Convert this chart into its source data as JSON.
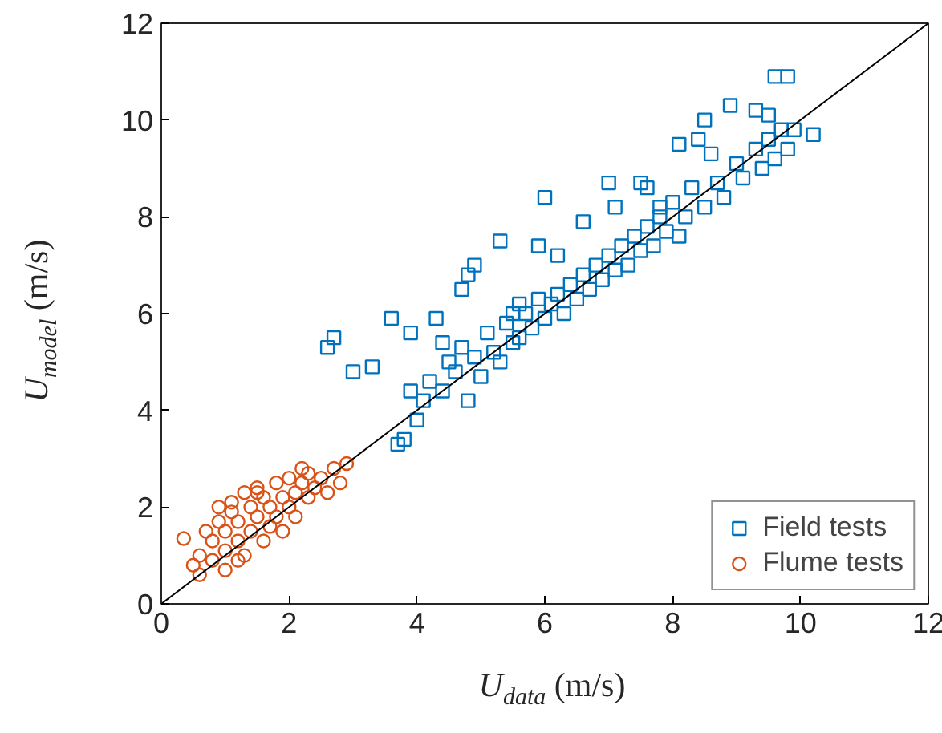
{
  "chart_data": {
    "type": "scatter",
    "xlabel": "U$_{data}$ (m/s)",
    "ylabel": "U$_{model}$ (m/s)",
    "xlim": [
      0,
      12
    ],
    "ylim": [
      0,
      12
    ],
    "xticks": [
      0,
      2,
      4,
      6,
      8,
      10,
      12
    ],
    "yticks": [
      0,
      2,
      4,
      6,
      8,
      10,
      12
    ],
    "grid": false,
    "legend": "bottom right",
    "series": [
      {
        "name": "Field tests",
        "marker": "square",
        "color": "#0072bd",
        "x": [
          2.6,
          2.7,
          3.0,
          3.3,
          3.6,
          3.9,
          4.3,
          4.7,
          4.9,
          5.3,
          4.8,
          5.5,
          6.0,
          5.9,
          6.6,
          7.1,
          7.0,
          7.5,
          7.8,
          8.1,
          8.5,
          8.9,
          9.6,
          9.8,
          9.9,
          10.2,
          3.7,
          3.8,
          4.0,
          4.1,
          4.2,
          4.4,
          4.5,
          4.6,
          4.7,
          4.8,
          4.9,
          5.0,
          5.1,
          5.2,
          5.3,
          5.4,
          5.5,
          5.6,
          5.7,
          5.8,
          5.9,
          6.0,
          6.1,
          6.2,
          6.3,
          6.4,
          6.5,
          6.6,
          6.7,
          6.8,
          6.9,
          7.0,
          7.1,
          7.2,
          7.3,
          7.4,
          7.5,
          7.6,
          7.7,
          7.8,
          7.9,
          8.0,
          8.1,
          8.2,
          8.3,
          8.5,
          8.7,
          8.8,
          9.0,
          9.1,
          9.3,
          9.4,
          9.5,
          9.6,
          9.7,
          9.8,
          9.3,
          9.5,
          8.6,
          8.4,
          7.6,
          6.2,
          5.6,
          4.4,
          3.9
        ],
        "values": [
          5.3,
          5.5,
          4.8,
          4.9,
          5.9,
          5.6,
          5.9,
          6.5,
          7.0,
          7.5,
          6.8,
          6.0,
          8.4,
          7.4,
          7.9,
          8.2,
          8.7,
          8.7,
          8.2,
          9.5,
          10.0,
          10.3,
          10.9,
          10.9,
          9.8,
          9.7,
          3.3,
          3.4,
          3.8,
          4.2,
          4.6,
          4.4,
          5.0,
          4.8,
          5.3,
          4.2,
          5.1,
          4.7,
          5.6,
          5.2,
          5.0,
          5.8,
          5.4,
          5.5,
          6.0,
          5.7,
          6.3,
          5.9,
          6.2,
          6.4,
          6.0,
          6.6,
          6.3,
          6.8,
          6.5,
          7.0,
          6.7,
          7.2,
          6.9,
          7.4,
          7.0,
          7.6,
          7.3,
          7.8,
          7.4,
          8.0,
          7.7,
          8.3,
          7.6,
          8.0,
          8.6,
          8.2,
          8.7,
          8.4,
          9.1,
          8.8,
          9.4,
          9.0,
          9.6,
          9.2,
          9.8,
          9.4,
          10.2,
          10.1,
          9.3,
          9.6,
          8.6,
          7.2,
          6.2,
          5.4,
          4.4
        ]
      },
      {
        "name": "Flume tests",
        "marker": "circle",
        "color": "#d95319",
        "x": [
          0.35,
          0.5,
          0.6,
          0.6,
          0.7,
          0.8,
          0.8,
          0.9,
          1.0,
          1.0,
          1.1,
          1.1,
          1.2,
          1.2,
          1.3,
          1.3,
          1.4,
          1.4,
          1.5,
          1.5,
          1.6,
          1.6,
          1.7,
          1.7,
          1.8,
          1.8,
          1.9,
          1.9,
          2.0,
          2.0,
          2.1,
          2.1,
          2.2,
          2.3,
          2.3,
          2.4,
          2.5,
          2.6,
          2.7,
          2.8,
          2.9,
          1.0,
          0.9,
          1.5,
          1.2,
          2.2
        ],
        "values": [
          1.35,
          0.8,
          0.6,
          1.0,
          1.5,
          0.9,
          1.3,
          1.7,
          1.1,
          1.5,
          1.9,
          2.1,
          1.3,
          1.7,
          2.3,
          1.0,
          1.5,
          2.0,
          1.8,
          2.4,
          1.3,
          2.2,
          1.6,
          2.0,
          2.5,
          1.8,
          2.2,
          1.5,
          2.0,
          2.6,
          2.3,
          1.8,
          2.5,
          2.2,
          2.7,
          2.4,
          2.6,
          2.3,
          2.8,
          2.5,
          2.9,
          0.7,
          2.0,
          2.3,
          0.9,
          2.8
        ]
      },
      {
        "type": "line",
        "color": "#000000",
        "line_style": "solid",
        "x": [
          0,
          12
        ],
        "values": [
          0,
          12
        ]
      }
    ]
  }
}
